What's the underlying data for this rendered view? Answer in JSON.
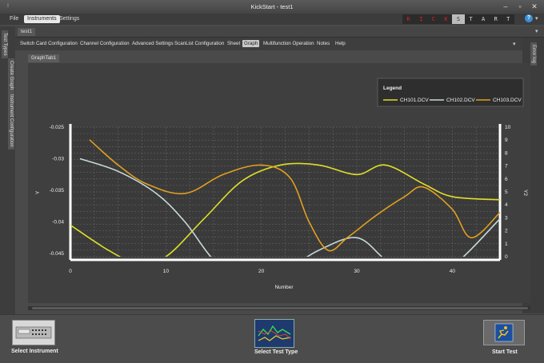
{
  "window": {
    "title": "KickStart - test1"
  },
  "menu": {
    "items": [
      "File",
      "Instruments",
      "Settings"
    ],
    "active": "Instruments"
  },
  "logo": {
    "letters": [
      "K",
      "I",
      "C",
      "K",
      "S",
      "T",
      "A",
      "R",
      "T"
    ]
  },
  "document": {
    "tab": "test1"
  },
  "left_panels": {
    "items": [
      "Test Types",
      "Create Graph",
      "Instrument Configuration"
    ]
  },
  "right_panel": {
    "label": "Error log"
  },
  "toolbar": {
    "items": [
      "Switch Card Configuration",
      "Channel Configuration",
      "Advanced Settings",
      "ScanList Configuration",
      "Sheet",
      "Graph",
      "Multifunction Operation",
      "Notes",
      "Help"
    ],
    "active": "Graph"
  },
  "graph_tab": "GraphTab1",
  "chart_data": {
    "type": "line",
    "xlabel": "Number",
    "ylabel": "Y",
    "y2label": "Y2",
    "xlim": [
      0,
      45
    ],
    "ylim": [
      -0.0455,
      -0.025
    ],
    "y2lim": [
      0,
      10
    ],
    "xticks": [
      0,
      10,
      20,
      30,
      40
    ],
    "yticks": [
      "-0.025",
      "-0.03",
      "-0.035",
      "-0.04",
      "-0.045"
    ],
    "y2ticks": [
      10,
      9,
      8,
      7,
      6,
      5,
      4,
      3,
      2,
      1,
      0
    ],
    "grid": true,
    "legend": {
      "title": "Legend",
      "placement": "top-right"
    },
    "series": [
      {
        "name": "CH101.DCV",
        "color": "#dede2a",
        "axis": "y",
        "x": [
          0,
          4,
          7,
          10,
          14,
          18,
          22,
          26,
          30,
          33,
          37,
          40,
          45
        ],
        "y": [
          -0.0405,
          -0.0445,
          -0.0465,
          -0.0455,
          -0.0395,
          -0.0335,
          -0.031,
          -0.031,
          -0.0325,
          -0.031,
          -0.034,
          -0.036,
          -0.0365
        ]
      },
      {
        "name": "CH102.DCV",
        "color": "#c8d8d8",
        "axis": "y",
        "x": [
          1,
          5,
          9,
          12,
          15,
          18,
          22,
          26,
          30,
          33,
          36,
          40,
          45
        ],
        "y": [
          -0.03,
          -0.032,
          -0.0355,
          -0.04,
          -0.046,
          -0.049,
          -0.048,
          -0.0445,
          -0.0425,
          -0.046,
          -0.049,
          -0.047,
          -0.0395
        ]
      },
      {
        "name": "CH103.DCV",
        "color": "#e0a020",
        "axis": "y",
        "x": [
          2,
          5,
          8,
          12,
          16,
          20,
          23,
          25,
          27,
          29,
          32,
          35,
          37,
          40,
          42,
          45
        ],
        "y": [
          -0.027,
          -0.031,
          -0.034,
          -0.0355,
          -0.0325,
          -0.031,
          -0.033,
          -0.04,
          -0.0445,
          -0.0425,
          -0.039,
          -0.036,
          -0.0345,
          -0.038,
          -0.0425,
          -0.0385
        ]
      }
    ]
  },
  "bottom": {
    "select_instrument": "Select Instrument",
    "select_test_type": "Select Test Type",
    "start_test": "Start Test"
  }
}
